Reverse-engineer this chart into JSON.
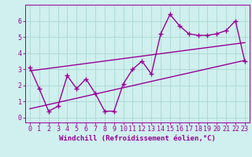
{
  "x": [
    0,
    1,
    2,
    3,
    4,
    5,
    6,
    7,
    8,
    9,
    10,
    11,
    12,
    13,
    14,
    15,
    16,
    17,
    18,
    19,
    20,
    21,
    22,
    23
  ],
  "y_line": [
    3.1,
    1.8,
    0.4,
    0.7,
    2.6,
    1.8,
    2.4,
    1.5,
    0.4,
    0.4,
    2.1,
    3.0,
    3.5,
    2.7,
    5.2,
    6.4,
    5.7,
    5.2,
    5.1,
    5.1,
    5.2,
    5.4,
    6.0,
    3.5
  ],
  "trend1_x": [
    0,
    23
  ],
  "trend1_y": [
    0.55,
    3.55
  ],
  "trend2_x": [
    0,
    23
  ],
  "trend2_y": [
    2.9,
    4.65
  ],
  "line_color": "#990099",
  "bg_color": "#cff0ee",
  "grid_color": "#aad8d0",
  "xlabel": "Windchill (Refroidissement éolien,°C)",
  "ylabel_ticks": [
    0,
    1,
    2,
    3,
    4,
    5,
    6
  ],
  "xtick_labels": [
    "0",
    "1",
    "2",
    "3",
    "4",
    "5",
    "6",
    "7",
    "8",
    "9",
    "10",
    "11",
    "12",
    "13",
    "14",
    "15",
    "16",
    "17",
    "18",
    "19",
    "20",
    "21",
    "22",
    "23"
  ],
  "xlim": [
    -0.5,
    23.5
  ],
  "ylim": [
    -0.3,
    7.0
  ],
  "marker": "+",
  "markersize": 5,
  "linewidth": 1.0,
  "xlabel_fontsize": 6.5,
  "tick_fontsize": 6
}
